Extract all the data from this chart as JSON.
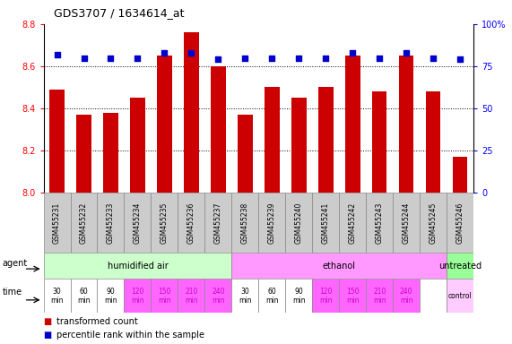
{
  "title": "GDS3707 / 1634614_at",
  "samples": [
    "GSM455231",
    "GSM455232",
    "GSM455233",
    "GSM455234",
    "GSM455235",
    "GSM455236",
    "GSM455237",
    "GSM455238",
    "GSM455239",
    "GSM455240",
    "GSM455241",
    "GSM455242",
    "GSM455243",
    "GSM455244",
    "GSM455245",
    "GSM455246"
  ],
  "bar_values": [
    8.49,
    8.37,
    8.38,
    8.45,
    8.65,
    8.76,
    8.6,
    8.37,
    8.5,
    8.45,
    8.5,
    8.65,
    8.48,
    8.65,
    8.48,
    8.17
  ],
  "dot_values": [
    82,
    80,
    80,
    80,
    83,
    83,
    79,
    80,
    80,
    80,
    80,
    83,
    80,
    83,
    80,
    79
  ],
  "ylim": [
    8.0,
    8.8
  ],
  "y2lim": [
    0,
    100
  ],
  "yticks": [
    8.0,
    8.2,
    8.4,
    8.6,
    8.8
  ],
  "y2ticks": [
    0,
    25,
    50,
    75,
    100
  ],
  "bar_color": "#cc0000",
  "dot_color": "#0000cc",
  "bg_color": "#ffffff",
  "agent_groups": [
    {
      "label": "humidified air",
      "start": 0,
      "end": 7,
      "color": "#ccffcc"
    },
    {
      "label": "ethanol",
      "start": 7,
      "end": 15,
      "color": "#ff99ff"
    },
    {
      "label": "untreated",
      "start": 15,
      "end": 16,
      "color": "#99ff99"
    }
  ],
  "time_labels": [
    "30\nmin",
    "60\nmin",
    "90\nmin",
    "120\nmin",
    "150\nmin",
    "210\nmin",
    "240\nmin",
    "30\nmin",
    "60\nmin",
    "90\nmin",
    "120\nmin",
    "150\nmin",
    "210\nmin",
    "240\nmin",
    "",
    "control"
  ],
  "time_colors": [
    "#ffffff",
    "#ffffff",
    "#ffffff",
    "#ff66ff",
    "#ff66ff",
    "#ff66ff",
    "#ff66ff",
    "#ffffff",
    "#ffffff",
    "#ffffff",
    "#ff66ff",
    "#ff66ff",
    "#ff66ff",
    "#ff66ff",
    "#ffffff",
    "#ffccff"
  ],
  "time_text_colors": [
    "#000000",
    "#000000",
    "#000000",
    "#cc00cc",
    "#cc00cc",
    "#cc00cc",
    "#cc00cc",
    "#000000",
    "#000000",
    "#000000",
    "#cc00cc",
    "#cc00cc",
    "#cc00cc",
    "#cc00cc",
    "#000000",
    "#000000"
  ],
  "legend_bar_label": "transformed count",
  "legend_dot_label": "percentile rank within the sample",
  "sample_bg": "#cccccc"
}
